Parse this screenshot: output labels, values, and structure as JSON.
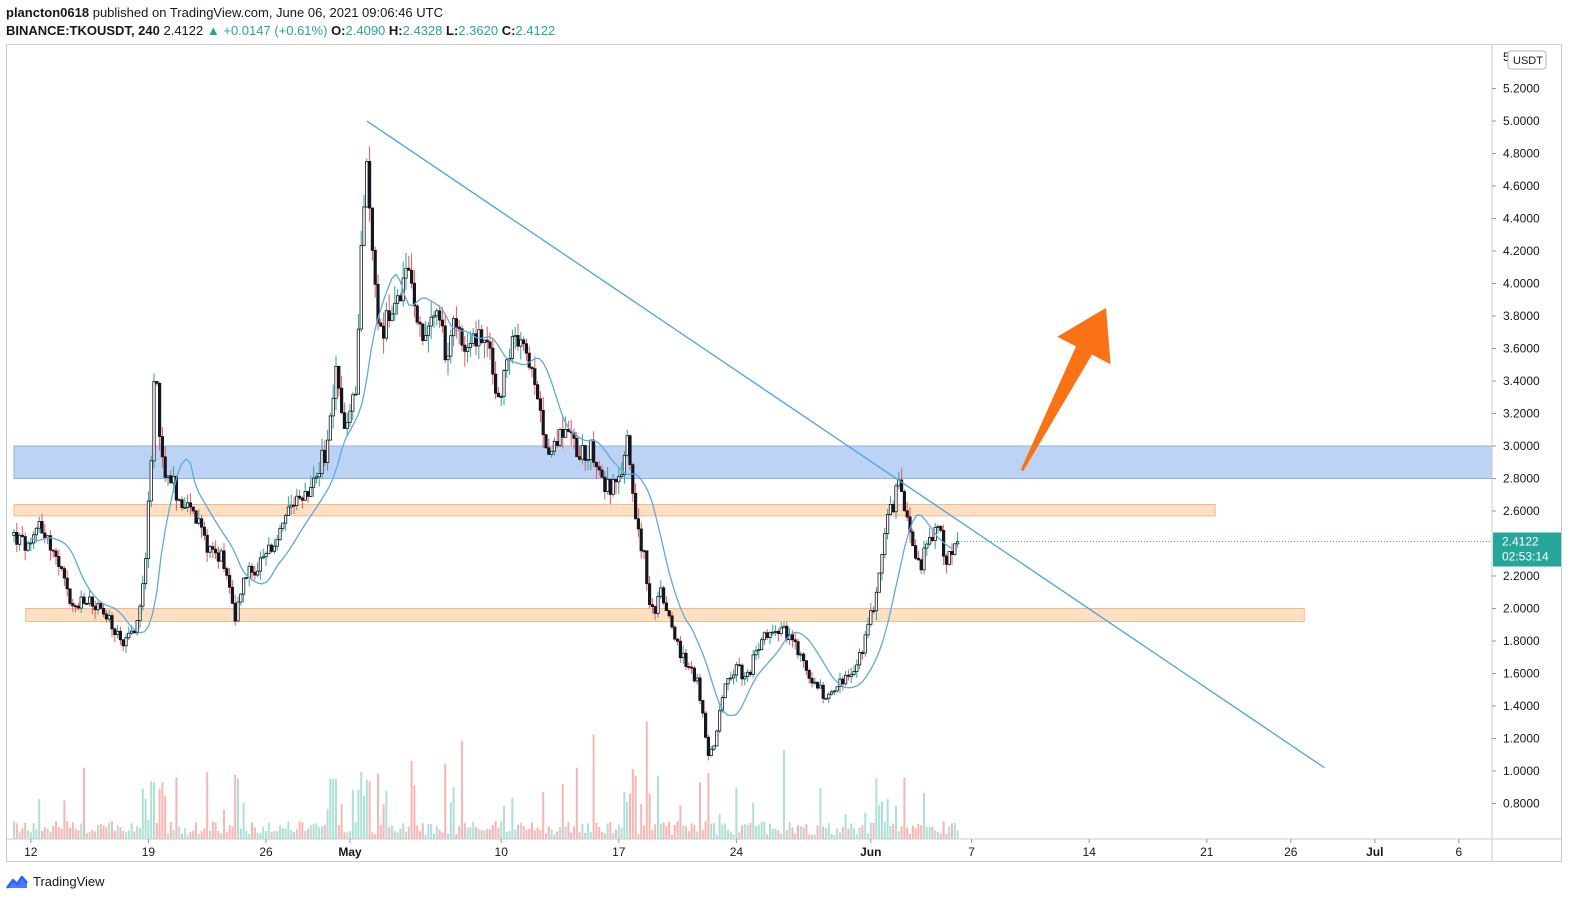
{
  "header": {
    "publisher": "plancton0618",
    "published_text": "published on TradingView.com, June 06, 2021 09:06:46 UTC",
    "symbol": "BINANCE:TKOUSDT, 240",
    "last": "2.4122",
    "change": "▲ +0.0147 (+0.61%)",
    "o_label": "O:",
    "o_value": "2.4090",
    "h_label": "H:",
    "h_value": "2.4328",
    "l_label": "L:",
    "l_value": "2.3620",
    "c_label": "C:",
    "c_value": "2.4122"
  },
  "footer": {
    "brand": "TradingView"
  },
  "chart_data": {
    "type": "candlestick",
    "currency_label": "USDT",
    "y_axis_top_label": "5",
    "y_ticks": [
      "5.2000",
      "5.0000",
      "4.8000",
      "4.6000",
      "4.4000",
      "4.2000",
      "4.0000",
      "3.8000",
      "3.6000",
      "3.4000",
      "3.2000",
      "3.0000",
      "2.8000",
      "2.6000",
      "2.2000",
      "2.0000",
      "1.8000",
      "1.6000",
      "1.4000",
      "1.2000",
      "1.0000",
      "0.8000"
    ],
    "y_tick_values": [
      5.2,
      5.0,
      4.8,
      4.6,
      4.4,
      4.2,
      4.0,
      3.8,
      3.6,
      3.4,
      3.2,
      3.0,
      2.8,
      2.6,
      2.2,
      2.0,
      1.8,
      1.6,
      1.4,
      1.2,
      1.0,
      0.8
    ],
    "ylim": [
      0.6,
      5.4
    ],
    "x_ticks": [
      {
        "label": "12",
        "day": -19
      },
      {
        "label": "19",
        "day": -12
      },
      {
        "label": "26",
        "day": -5
      },
      {
        "label": "May",
        "day": 0
      },
      {
        "label": "10",
        "day": 9
      },
      {
        "label": "17",
        "day": 16
      },
      {
        "label": "24",
        "day": 23
      },
      {
        "label": "Jun",
        "day": 31
      },
      {
        "label": "7",
        "day": 37
      },
      {
        "label": "14",
        "day": 44
      },
      {
        "label": "21",
        "day": 51
      },
      {
        "label": "26",
        "day": 56
      },
      {
        "label": "Jul",
        "day": 61
      },
      {
        "label": "6",
        "day": 66
      }
    ],
    "last_price_label": "2.4122",
    "countdown_label": "02:53:14",
    "last_price": 2.4122,
    "price_path": [
      [
        -20,
        2.45
      ],
      [
        -19,
        2.35
      ],
      [
        -18.5,
        2.55
      ],
      [
        -17.5,
        2.3
      ],
      [
        -16.5,
        2.0
      ],
      [
        -15.5,
        2.05
      ],
      [
        -14.5,
        1.95
      ],
      [
        -13.5,
        1.75
      ],
      [
        -12.7,
        1.9
      ],
      [
        -12.2,
        2.3
      ],
      [
        -11.8,
        2.9
      ],
      [
        -11.6,
        3.6
      ],
      [
        -11.2,
        2.9
      ],
      [
        -10.5,
        2.75
      ],
      [
        -9.5,
        2.6
      ],
      [
        -8.5,
        2.4
      ],
      [
        -7.5,
        2.3
      ],
      [
        -6.8,
        1.95
      ],
      [
        -6.3,
        2.2
      ],
      [
        -5.5,
        2.25
      ],
      [
        -4.5,
        2.4
      ],
      [
        -3.5,
        2.6
      ],
      [
        -2.5,
        2.7
      ],
      [
        -1.5,
        2.95
      ],
      [
        -0.8,
        3.45
      ],
      [
        -0.3,
        3.1
      ],
      [
        0.3,
        3.3
      ],
      [
        0.7,
        4.3
      ],
      [
        1.0,
        4.7
      ],
      [
        1.4,
        4.1
      ],
      [
        1.8,
        3.7
      ],
      [
        2.4,
        3.8
      ],
      [
        3.0,
        3.95
      ],
      [
        3.6,
        4.05
      ],
      [
        4.3,
        3.7
      ],
      [
        5.0,
        3.8
      ],
      [
        5.7,
        3.6
      ],
      [
        6.4,
        3.75
      ],
      [
        7.2,
        3.6
      ],
      [
        8.0,
        3.7
      ],
      [
        8.8,
        3.3
      ],
      [
        9.6,
        3.6
      ],
      [
        10.4,
        3.65
      ],
      [
        11.2,
        3.2
      ],
      [
        12.0,
        2.95
      ],
      [
        12.8,
        3.15
      ],
      [
        13.6,
        2.95
      ],
      [
        14.4,
        3.0
      ],
      [
        15.2,
        2.75
      ],
      [
        16.0,
        2.75
      ],
      [
        16.5,
        3.05
      ],
      [
        17.0,
        2.6
      ],
      [
        17.5,
        2.3
      ],
      [
        17.9,
        1.95
      ],
      [
        18.5,
        2.1
      ],
      [
        19.2,
        1.85
      ],
      [
        20.0,
        1.65
      ],
      [
        20.7,
        1.55
      ],
      [
        21.3,
        1.1
      ],
      [
        21.8,
        1.2
      ],
      [
        22.3,
        1.55
      ],
      [
        23.0,
        1.65
      ],
      [
        23.6,
        1.55
      ],
      [
        24.4,
        1.8
      ],
      [
        25.2,
        1.9
      ],
      [
        26.0,
        1.85
      ],
      [
        26.8,
        1.7
      ],
      [
        27.6,
        1.55
      ],
      [
        28.4,
        1.45
      ],
      [
        29.2,
        1.55
      ],
      [
        30.0,
        1.6
      ],
      [
        30.8,
        1.85
      ],
      [
        31.4,
        2.15
      ],
      [
        32.0,
        2.55
      ],
      [
        32.7,
        2.75
      ],
      [
        33.2,
        2.6
      ],
      [
        33.8,
        2.25
      ],
      [
        34.5,
        2.4
      ],
      [
        35.0,
        2.5
      ],
      [
        35.5,
        2.3
      ],
      [
        36.2,
        2.4
      ]
    ],
    "sma_lag": 0.9,
    "trendline": {
      "from": [
        1.0,
        5.0
      ],
      "to": [
        58.0,
        1.02
      ]
    },
    "zones": [
      {
        "name": "resistance",
        "from_price": 2.8,
        "to_price": 3.0,
        "from_day": -20,
        "to_day": null,
        "color": "#bcd3f5",
        "edge": "#8fb0e8"
      },
      {
        "name": "mid-support",
        "from_price": 2.57,
        "to_price": 2.64,
        "from_day": -20,
        "to_day": 51.5,
        "color": "#fde0c4",
        "edge": "#f7b984"
      },
      {
        "name": "support",
        "from_price": 1.92,
        "to_price": 2.0,
        "from_day": -19.3,
        "to_day": 56.8,
        "color": "#fde0c4",
        "edge": "#f7b984"
      }
    ],
    "arrow": {
      "tail": [
        40.0,
        2.85
      ],
      "tip": [
        45.0,
        3.85
      ],
      "color": "#f97316"
    },
    "colors": {
      "up": "#26a69a",
      "down": "#ef5350",
      "candle_up_fill": "#ffffff",
      "wick": "#131722",
      "sma": "#5ea9e3",
      "trendline": "#4aa3e0",
      "up_vol": "#aee0d6",
      "down_vol": "#f7b5b4"
    }
  }
}
